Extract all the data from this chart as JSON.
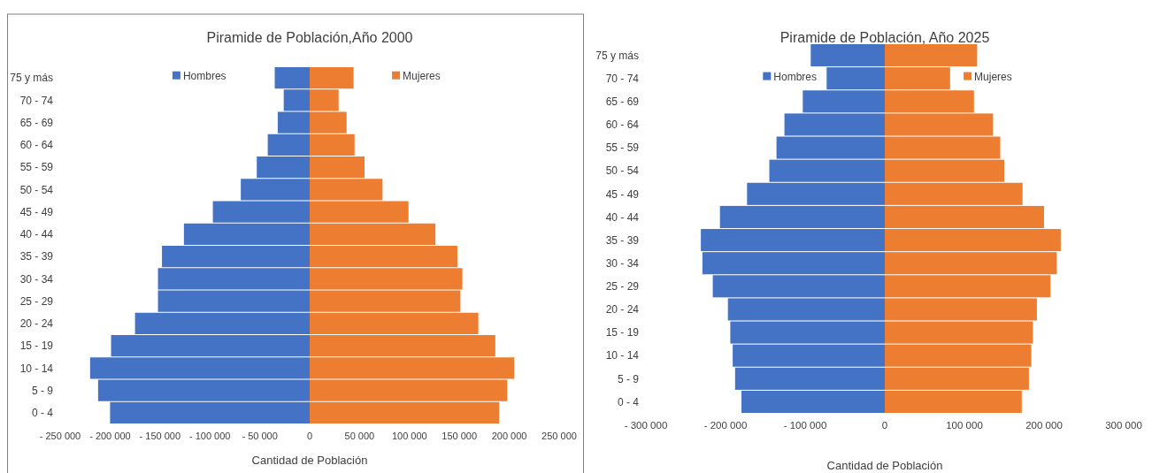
{
  "chart_data": [
    {
      "type": "bar",
      "orientation": "horizontal",
      "title": "Piramide de Población,Año 2000",
      "xlabel": "Cantidad de Población",
      "categories": [
        "75 y más",
        "70 - 74",
        "65 - 69",
        "60 - 64",
        "55 - 59",
        "50 - 54",
        "45 - 49",
        "40 - 44",
        "35 - 39",
        "30 - 34",
        "25 - 29",
        "20 - 24",
        "15 - 19",
        "10 - 14",
        "5 - 9",
        "0 - 4"
      ],
      "series": [
        {
          "name": "Hombres",
          "color": "#4472c4",
          "values": [
            -35000,
            -26000,
            -32000,
            -42000,
            -53000,
            -69000,
            -97000,
            -126000,
            -148000,
            -152000,
            -152000,
            -175000,
            -199000,
            -220000,
            -212000,
            -200000
          ]
        },
        {
          "name": "Mujeres",
          "color": "#ed7d31",
          "values": [
            44000,
            29000,
            37000,
            45000,
            55000,
            73000,
            99000,
            126000,
            148000,
            153000,
            151000,
            169000,
            186000,
            205000,
            198000,
            190000
          ]
        }
      ],
      "xlim": [
        -250000,
        250000
      ],
      "xticks": [
        {
          "value": -250000,
          "label": "- 250 000"
        },
        {
          "value": -200000,
          "label": "- 200 000"
        },
        {
          "value": -150000,
          "label": "- 150 000"
        },
        {
          "value": -100000,
          "label": "- 100 000"
        },
        {
          "value": -50000,
          "label": "- 50 000"
        },
        0,
        {
          "value": 50000,
          "label": "50 000"
        },
        {
          "value": 100000,
          "label": "100 000"
        },
        {
          "value": 150000,
          "label": "150 000"
        },
        {
          "value": 200000,
          "label": "200 000"
        },
        {
          "value": 250000,
          "label": "250 000"
        }
      ],
      "legend": "top",
      "grid": false,
      "stacked": true
    },
    {
      "type": "bar",
      "orientation": "horizontal",
      "title": "Piramide de Población, Año 2025",
      "xlabel": "Cantidad de Población",
      "categories": [
        "75 y más",
        "70 - 74",
        "65 - 69",
        "60 - 64",
        "55 - 59",
        "50 - 54",
        "45 - 49",
        "40 - 44",
        "35 - 39",
        "30 - 34",
        "25 - 29",
        "20 - 24",
        "15 - 19",
        "10 - 14",
        "5 - 9",
        "0 - 4"
      ],
      "series": [
        {
          "name": "Hombres",
          "color": "#4472c4",
          "values": [
            -93000,
            -73000,
            -103000,
            -126000,
            -136000,
            -145000,
            -173000,
            -207000,
            -231000,
            -229000,
            -216000,
            -197000,
            -194000,
            -191000,
            -188000,
            -180000
          ]
        },
        {
          "name": "Mujeres",
          "color": "#ed7d31",
          "values": [
            116000,
            82000,
            112000,
            136000,
            145000,
            150000,
            173000,
            200000,
            221000,
            216000,
            208000,
            191000,
            186000,
            184000,
            181000,
            172000
          ]
        }
      ],
      "xlim": [
        -300000,
        300000
      ],
      "xticks": [
        {
          "value": -300000,
          "label": "- 300 000"
        },
        {
          "value": -200000,
          "label": "- 200 000"
        },
        {
          "value": -100000,
          "label": "- 100 000"
        },
        0,
        {
          "value": 100000,
          "label": "100 000"
        },
        {
          "value": 200000,
          "label": "200 000"
        },
        {
          "value": 300000,
          "label": "300 000"
        }
      ],
      "legend": "top",
      "grid": false,
      "stacked": true
    }
  ]
}
